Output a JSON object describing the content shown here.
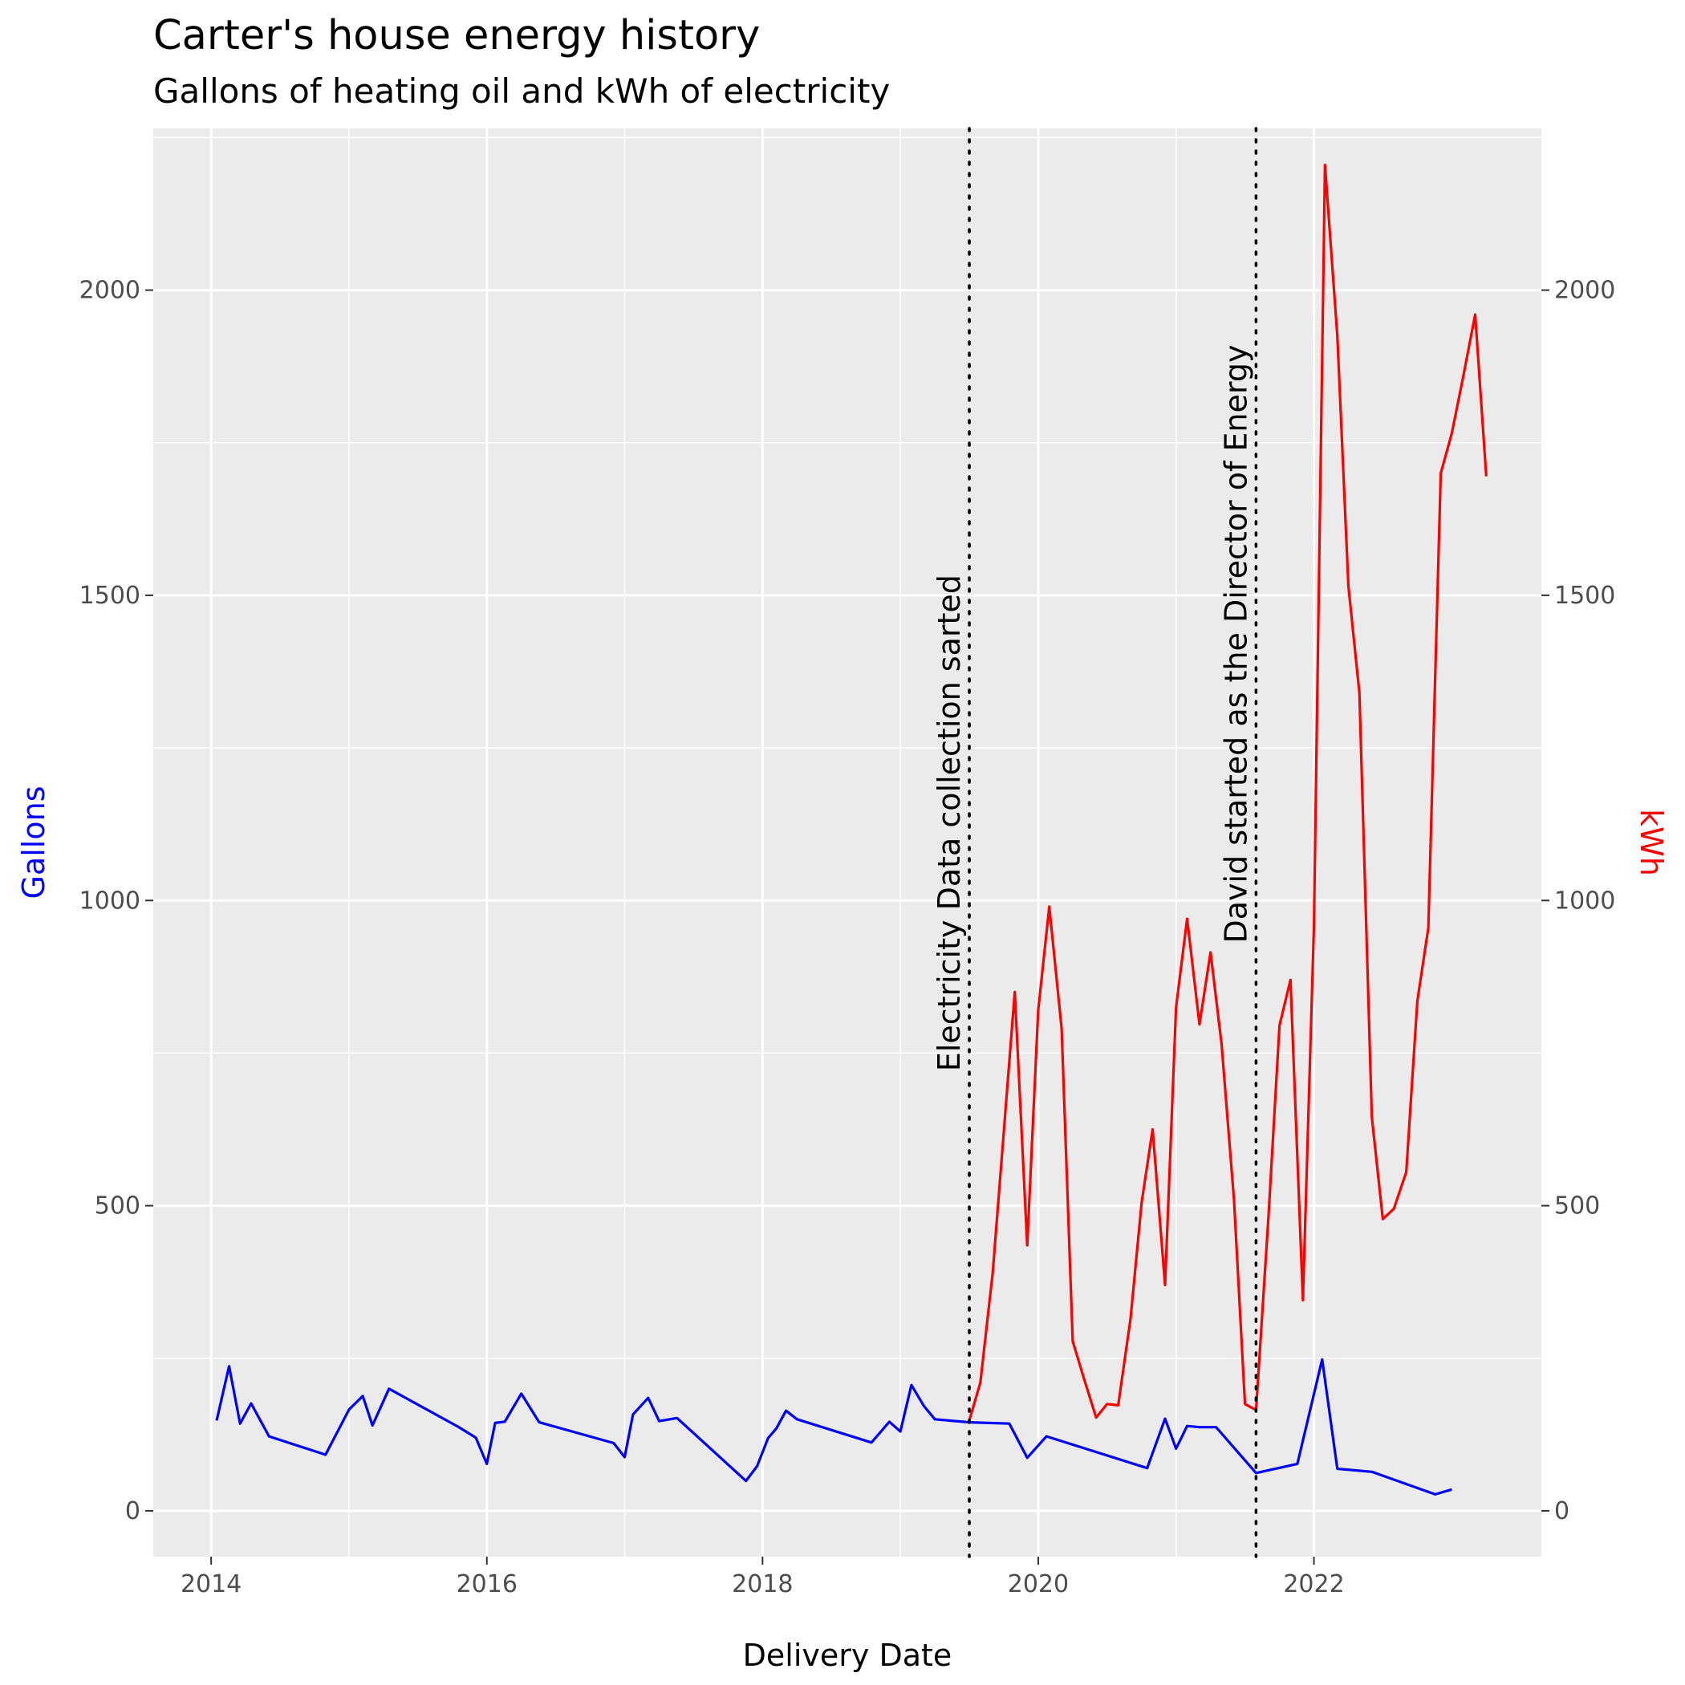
{
  "chart_data": {
    "type": "line",
    "title": "Carter's house energy history",
    "subtitle": "Gallons of heating oil and kWh of electricity",
    "xlabel": "Delivery Date",
    "ylabel_left": "Gallons",
    "ylabel_right": "kWh",
    "xlim": [
      2013.58,
      2023.65
    ],
    "ylim": [
      -75,
      2265
    ],
    "x_ticks": [
      2014,
      2016,
      2018,
      2020,
      2022
    ],
    "x_tick_labels": [
      "2014",
      "2016",
      "2018",
      "2020",
      "2022"
    ],
    "y_ticks": [
      0,
      500,
      1000,
      1500,
      2000
    ],
    "y_tick_labels": [
      "0",
      "500",
      "1000",
      "1500",
      "2000"
    ],
    "grid": true,
    "colors": {
      "panel": "#ebebeb",
      "grid": "#ffffff",
      "gallons": "#0000ff",
      "kwh": "#ff0000",
      "annotation": "#000000"
    },
    "annotations": [
      {
        "x": 2019.5,
        "label": "Electricity Data collection sarted",
        "label_y": 720
      },
      {
        "x": 2021.58,
        "label": "David started as the Director of Energy",
        "label_y": 930
      }
    ],
    "series": [
      {
        "name": "Gallons",
        "axis": "left",
        "color": "#0000ff",
        "x": [
          2014.04,
          2014.13,
          2014.21,
          2014.29,
          2014.42,
          2014.83,
          2015.0,
          2015.1,
          2015.17,
          2015.29,
          2015.79,
          2015.92,
          2016.0,
          2016.06,
          2016.13,
          2016.25,
          2016.38,
          2016.92,
          2017.0,
          2017.06,
          2017.17,
          2017.25,
          2017.38,
          2017.88,
          2017.96,
          2018.04,
          2018.1,
          2018.17,
          2018.25,
          2018.79,
          2018.92,
          2019.0,
          2019.08,
          2019.17,
          2019.25,
          2019.5,
          2019.79,
          2019.92,
          2020.06,
          2020.79,
          2020.92,
          2021.0,
          2021.08,
          2021.17,
          2021.29,
          2021.58,
          2021.88,
          2022.06,
          2022.17,
          2022.42,
          2022.88,
          2023.0
        ],
        "y": [
          148,
          237,
          143,
          176,
          122,
          92,
          166,
          188,
          140,
          200,
          138,
          120,
          77,
          144,
          146,
          192,
          145,
          111,
          88,
          158,
          185,
          147,
          152,
          49,
          73,
          119,
          135,
          164,
          150,
          112,
          146,
          130,
          206,
          172,
          150,
          145,
          143,
          87,
          122,
          70,
          151,
          102,
          139,
          137,
          137,
          62,
          77,
          248,
          69,
          64,
          27,
          35
        ]
      },
      {
        "name": "kWh",
        "axis": "right",
        "color": "#ff0000",
        "x": [
          2019.5,
          2019.58,
          2019.67,
          2019.83,
          2019.92,
          2020.0,
          2020.08,
          2020.17,
          2020.25,
          2020.33,
          2020.42,
          2020.5,
          2020.58,
          2020.67,
          2020.75,
          2020.83,
          2020.92,
          2021.0,
          2021.08,
          2021.17,
          2021.25,
          2021.33,
          2021.42,
          2021.5,
          2021.58,
          2021.67,
          2021.75,
          2021.83,
          2021.92,
          2022.0,
          2022.08,
          2022.17,
          2022.25,
          2022.33,
          2022.42,
          2022.5,
          2022.58,
          2022.67,
          2022.75,
          2022.83,
          2022.92,
          2023.0,
          2023.08,
          2023.17,
          2023.25
        ],
        "y": [
          148,
          210,
          390,
          850,
          435,
          820,
          990,
          790,
          278,
          218,
          153,
          175,
          173,
          315,
          505,
          625,
          370,
          825,
          970,
          797,
          915,
          765,
          510,
          175,
          165,
          480,
          795,
          870,
          345,
          955,
          2205,
          1925,
          1515,
          1340,
          645,
          478,
          495,
          555,
          835,
          955,
          1700,
          1765,
          1855,
          1960,
          1695
        ]
      }
    ]
  }
}
